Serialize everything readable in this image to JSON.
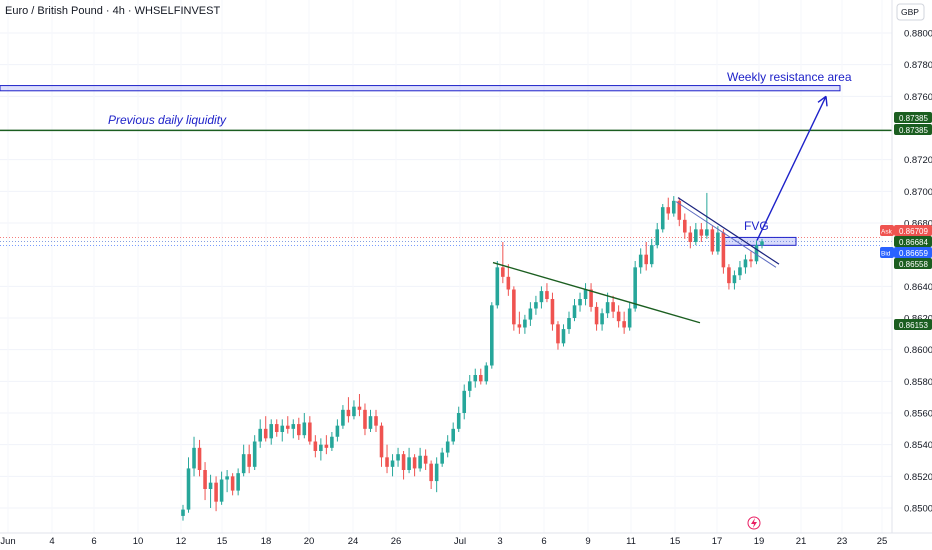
{
  "chart_data": {
    "type": "candlestick",
    "title": "Euro / British Pound · 4h · WHSELFINVEST",
    "currency": "GBP",
    "y_ticks": [
      "0.88000",
      "0.87800",
      "0.87600",
      "0.87200",
      "0.87000",
      "0.86800",
      "0.86400",
      "0.86200",
      "0.86000",
      "0.85800",
      "0.85600",
      "0.85400",
      "0.85200",
      "0.85000"
    ],
    "x_ticks": [
      "Jun",
      "4",
      "6",
      "10",
      "12",
      "15",
      "18",
      "20",
      "24",
      "26",
      "Jul",
      "3",
      "6",
      "9",
      "11",
      "15",
      "17",
      "19",
      "21",
      "23",
      "25"
    ],
    "ylim": [
      0.8493,
      0.881
    ],
    "annotations": {
      "weekly_resistance": "Weekly resistance area",
      "previous_daily_liquidity": "Previous daily liquidity",
      "fvg": "FVG"
    },
    "levels": {
      "resistance_zone": [
        0.87635,
        0.87668
      ],
      "daily_liquidity": 0.87385,
      "fvg_zone": [
        0.86659,
        0.86709
      ]
    },
    "price_labels": {
      "liquidity_a": "0.87385",
      "liquidity_b": "0.87385",
      "ask_tag": "Ask",
      "ask": "0.86709",
      "last": "0.86684",
      "bid_tag": "Bid",
      "bid": "0.86659",
      "low_a": "0.86558",
      "low_b": "0.86153"
    },
    "colors": {
      "up": "#26a69a",
      "down": "#ef5350",
      "drawing": "#1e22c9",
      "trendline": "#1b5e20",
      "liquidity_line": "#1b5e20",
      "ask": "#ef5350",
      "bid": "#2962ff",
      "label_green": "#1b5e20"
    },
    "candles": [
      {
        "o": 0.8495,
        "h": 0.8502,
        "l": 0.8492,
        "c": 0.8499
      },
      {
        "o": 0.8499,
        "h": 0.8532,
        "l": 0.8497,
        "c": 0.8525
      },
      {
        "o": 0.8525,
        "h": 0.8545,
        "l": 0.852,
        "c": 0.8538
      },
      {
        "o": 0.8538,
        "h": 0.8543,
        "l": 0.852,
        "c": 0.8524
      },
      {
        "o": 0.8524,
        "h": 0.8529,
        "l": 0.8505,
        "c": 0.8512
      },
      {
        "o": 0.8512,
        "h": 0.8521,
        "l": 0.85,
        "c": 0.8516
      },
      {
        "o": 0.8516,
        "h": 0.852,
        "l": 0.8498,
        "c": 0.8504
      },
      {
        "o": 0.8504,
        "h": 0.8523,
        "l": 0.8502,
        "c": 0.8518
      },
      {
        "o": 0.8518,
        "h": 0.8524,
        "l": 0.851,
        "c": 0.852
      },
      {
        "o": 0.852,
        "h": 0.8522,
        "l": 0.8508,
        "c": 0.8511
      },
      {
        "o": 0.8511,
        "h": 0.8525,
        "l": 0.8508,
        "c": 0.8522
      },
      {
        "o": 0.8522,
        "h": 0.854,
        "l": 0.852,
        "c": 0.8534
      },
      {
        "o": 0.8534,
        "h": 0.854,
        "l": 0.8522,
        "c": 0.8526
      },
      {
        "o": 0.8526,
        "h": 0.8546,
        "l": 0.8524,
        "c": 0.8542
      },
      {
        "o": 0.8542,
        "h": 0.8556,
        "l": 0.8538,
        "c": 0.855
      },
      {
        "o": 0.855,
        "h": 0.8558,
        "l": 0.8542,
        "c": 0.8544
      },
      {
        "o": 0.8544,
        "h": 0.8556,
        "l": 0.854,
        "c": 0.8553
      },
      {
        "o": 0.8553,
        "h": 0.8556,
        "l": 0.8545,
        "c": 0.8548
      },
      {
        "o": 0.8548,
        "h": 0.8556,
        "l": 0.8542,
        "c": 0.8552
      },
      {
        "o": 0.8552,
        "h": 0.8558,
        "l": 0.8547,
        "c": 0.855
      },
      {
        "o": 0.855,
        "h": 0.8556,
        "l": 0.8544,
        "c": 0.8553
      },
      {
        "o": 0.8553,
        "h": 0.8557,
        "l": 0.8543,
        "c": 0.8546
      },
      {
        "o": 0.8546,
        "h": 0.856,
        "l": 0.8544,
        "c": 0.8554
      },
      {
        "o": 0.8554,
        "h": 0.8558,
        "l": 0.854,
        "c": 0.8542
      },
      {
        "o": 0.8542,
        "h": 0.8546,
        "l": 0.8532,
        "c": 0.8536
      },
      {
        "o": 0.8536,
        "h": 0.8544,
        "l": 0.853,
        "c": 0.854
      },
      {
        "o": 0.854,
        "h": 0.8546,
        "l": 0.8534,
        "c": 0.8538
      },
      {
        "o": 0.8538,
        "h": 0.8548,
        "l": 0.8536,
        "c": 0.8545
      },
      {
        "o": 0.8545,
        "h": 0.8556,
        "l": 0.8542,
        "c": 0.8552
      },
      {
        "o": 0.8552,
        "h": 0.8565,
        "l": 0.855,
        "c": 0.8562
      },
      {
        "o": 0.8562,
        "h": 0.857,
        "l": 0.8554,
        "c": 0.8558
      },
      {
        "o": 0.8558,
        "h": 0.8568,
        "l": 0.8556,
        "c": 0.8564
      },
      {
        "o": 0.8564,
        "h": 0.8572,
        "l": 0.8558,
        "c": 0.8562
      },
      {
        "o": 0.8562,
        "h": 0.8566,
        "l": 0.8546,
        "c": 0.855
      },
      {
        "o": 0.855,
        "h": 0.8562,
        "l": 0.8548,
        "c": 0.8558
      },
      {
        "o": 0.8558,
        "h": 0.8562,
        "l": 0.8548,
        "c": 0.8552
      },
      {
        "o": 0.8552,
        "h": 0.8554,
        "l": 0.8526,
        "c": 0.8532
      },
      {
        "o": 0.8532,
        "h": 0.854,
        "l": 0.8522,
        "c": 0.8526
      },
      {
        "o": 0.8526,
        "h": 0.8534,
        "l": 0.852,
        "c": 0.853
      },
      {
        "o": 0.853,
        "h": 0.8538,
        "l": 0.8526,
        "c": 0.8534
      },
      {
        "o": 0.8534,
        "h": 0.8536,
        "l": 0.8518,
        "c": 0.8524
      },
      {
        "o": 0.8524,
        "h": 0.8538,
        "l": 0.8522,
        "c": 0.8532
      },
      {
        "o": 0.8532,
        "h": 0.8534,
        "l": 0.852,
        "c": 0.8525
      },
      {
        "o": 0.8525,
        "h": 0.8538,
        "l": 0.8523,
        "c": 0.8533
      },
      {
        "o": 0.8533,
        "h": 0.8537,
        "l": 0.8524,
        "c": 0.8528
      },
      {
        "o": 0.8528,
        "h": 0.853,
        "l": 0.8512,
        "c": 0.8517
      },
      {
        "o": 0.8517,
        "h": 0.8532,
        "l": 0.851,
        "c": 0.8528
      },
      {
        "o": 0.8528,
        "h": 0.8538,
        "l": 0.8526,
        "c": 0.8535
      },
      {
        "o": 0.8535,
        "h": 0.8546,
        "l": 0.8532,
        "c": 0.8542
      },
      {
        "o": 0.8542,
        "h": 0.8554,
        "l": 0.854,
        "c": 0.855
      },
      {
        "o": 0.855,
        "h": 0.8564,
        "l": 0.8548,
        "c": 0.856
      },
      {
        "o": 0.856,
        "h": 0.8578,
        "l": 0.8556,
        "c": 0.8574
      },
      {
        "o": 0.8574,
        "h": 0.8584,
        "l": 0.857,
        "c": 0.858
      },
      {
        "o": 0.858,
        "h": 0.8588,
        "l": 0.8576,
        "c": 0.8584
      },
      {
        "o": 0.8584,
        "h": 0.8588,
        "l": 0.8578,
        "c": 0.858
      },
      {
        "o": 0.858,
        "h": 0.8592,
        "l": 0.8578,
        "c": 0.859
      },
      {
        "o": 0.859,
        "h": 0.863,
        "l": 0.8588,
        "c": 0.8628
      },
      {
        "o": 0.8628,
        "h": 0.8656,
        "l": 0.8626,
        "c": 0.8652
      },
      {
        "o": 0.8652,
        "h": 0.8668,
        "l": 0.8642,
        "c": 0.8646
      },
      {
        "o": 0.8646,
        "h": 0.8654,
        "l": 0.8634,
        "c": 0.8638
      },
      {
        "o": 0.8638,
        "h": 0.864,
        "l": 0.8612,
        "c": 0.8616
      },
      {
        "o": 0.8616,
        "h": 0.8624,
        "l": 0.861,
        "c": 0.8614
      },
      {
        "o": 0.8614,
        "h": 0.8622,
        "l": 0.861,
        "c": 0.8619
      },
      {
        "o": 0.8619,
        "h": 0.863,
        "l": 0.8615,
        "c": 0.8626
      },
      {
        "o": 0.8626,
        "h": 0.8634,
        "l": 0.8622,
        "c": 0.863
      },
      {
        "o": 0.863,
        "h": 0.864,
        "l": 0.8626,
        "c": 0.8637
      },
      {
        "o": 0.8637,
        "h": 0.8642,
        "l": 0.863,
        "c": 0.8632
      },
      {
        "o": 0.8632,
        "h": 0.8636,
        "l": 0.8612,
        "c": 0.8616
      },
      {
        "o": 0.8616,
        "h": 0.8618,
        "l": 0.86,
        "c": 0.8604
      },
      {
        "o": 0.8604,
        "h": 0.8616,
        "l": 0.8602,
        "c": 0.8613
      },
      {
        "o": 0.8613,
        "h": 0.8624,
        "l": 0.861,
        "c": 0.862
      },
      {
        "o": 0.862,
        "h": 0.8632,
        "l": 0.8618,
        "c": 0.8628
      },
      {
        "o": 0.8628,
        "h": 0.8636,
        "l": 0.8624,
        "c": 0.8632
      },
      {
        "o": 0.8632,
        "h": 0.8642,
        "l": 0.8628,
        "c": 0.8638
      },
      {
        "o": 0.8638,
        "h": 0.8642,
        "l": 0.8624,
        "c": 0.8627
      },
      {
        "o": 0.8627,
        "h": 0.863,
        "l": 0.8612,
        "c": 0.8616
      },
      {
        "o": 0.8616,
        "h": 0.8626,
        "l": 0.8612,
        "c": 0.8623
      },
      {
        "o": 0.8623,
        "h": 0.8636,
        "l": 0.862,
        "c": 0.863
      },
      {
        "o": 0.863,
        "h": 0.8634,
        "l": 0.862,
        "c": 0.8624
      },
      {
        "o": 0.8624,
        "h": 0.8628,
        "l": 0.8614,
        "c": 0.8618
      },
      {
        "o": 0.8618,
        "h": 0.8624,
        "l": 0.861,
        "c": 0.8614
      },
      {
        "o": 0.8614,
        "h": 0.863,
        "l": 0.8612,
        "c": 0.8626
      },
      {
        "o": 0.8626,
        "h": 0.8656,
        "l": 0.8624,
        "c": 0.8652
      },
      {
        "o": 0.8652,
        "h": 0.8664,
        "l": 0.8648,
        "c": 0.866
      },
      {
        "o": 0.866,
        "h": 0.8668,
        "l": 0.865,
        "c": 0.8654
      },
      {
        "o": 0.8654,
        "h": 0.867,
        "l": 0.8652,
        "c": 0.8666
      },
      {
        "o": 0.8666,
        "h": 0.868,
        "l": 0.8664,
        "c": 0.8676
      },
      {
        "o": 0.8676,
        "h": 0.8692,
        "l": 0.8674,
        "c": 0.869
      },
      {
        "o": 0.869,
        "h": 0.8696,
        "l": 0.8682,
        "c": 0.8686
      },
      {
        "o": 0.8686,
        "h": 0.8697,
        "l": 0.8684,
        "c": 0.8694
      },
      {
        "o": 0.8694,
        "h": 0.8696,
        "l": 0.8678,
        "c": 0.8682
      },
      {
        "o": 0.8682,
        "h": 0.8686,
        "l": 0.867,
        "c": 0.8674
      },
      {
        "o": 0.8674,
        "h": 0.8678,
        "l": 0.8664,
        "c": 0.8668
      },
      {
        "o": 0.8668,
        "h": 0.868,
        "l": 0.8666,
        "c": 0.8676
      },
      {
        "o": 0.8676,
        "h": 0.868,
        "l": 0.8668,
        "c": 0.8672
      },
      {
        "o": 0.8672,
        "h": 0.8699,
        "l": 0.867,
        "c": 0.8676
      },
      {
        "o": 0.8676,
        "h": 0.8678,
        "l": 0.866,
        "c": 0.8662
      },
      {
        "o": 0.8662,
        "h": 0.8678,
        "l": 0.866,
        "c": 0.8674
      },
      {
        "o": 0.8674,
        "h": 0.8676,
        "l": 0.8648,
        "c": 0.8652
      },
      {
        "o": 0.8652,
        "h": 0.8654,
        "l": 0.8638,
        "c": 0.8642
      },
      {
        "o": 0.8642,
        "h": 0.865,
        "l": 0.8638,
        "c": 0.8647
      },
      {
        "o": 0.8647,
        "h": 0.8656,
        "l": 0.8644,
        "c": 0.8652
      },
      {
        "o": 0.8652,
        "h": 0.866,
        "l": 0.8648,
        "c": 0.8657
      },
      {
        "o": 0.8657,
        "h": 0.8662,
        "l": 0.8652,
        "c": 0.86558
      },
      {
        "o": 0.86558,
        "h": 0.8669,
        "l": 0.8654,
        "c": 0.8666
      },
      {
        "o": 0.8666,
        "h": 0.867,
        "l": 0.8664,
        "c": 0.86684
      }
    ]
  }
}
